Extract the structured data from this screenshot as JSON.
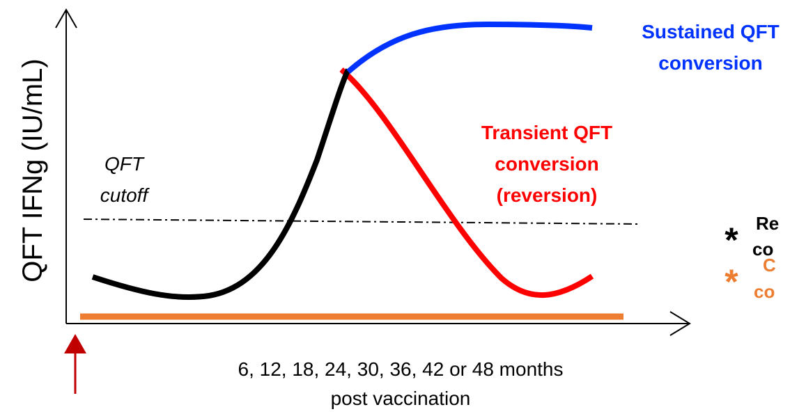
{
  "y_axis_label": "QFT IFNg (IU/mL)",
  "cutoff_label": [
    "QFT",
    "cutoff"
  ],
  "sustained_label": [
    "Sustained QFT",
    "conversion"
  ],
  "transient_label": [
    "Transient QFT",
    "conversion",
    "(reversion)"
  ],
  "x_axis_label": [
    "6, 12, 18, 24, 30, 36, 42 or 48 months",
    "post vaccination"
  ],
  "legend": [
    {
      "lines": [
        "Re",
        "co"
      ]
    },
    {
      "lines": [
        "C",
        "co"
      ]
    }
  ]
}
